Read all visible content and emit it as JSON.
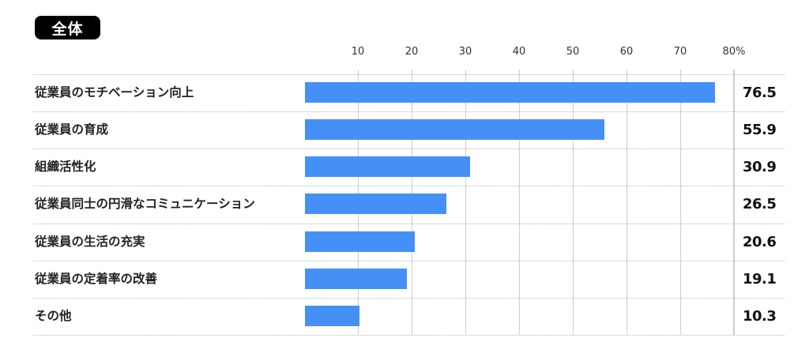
{
  "header": {
    "badge_label": "全体"
  },
  "axis": {
    "ticks": [
      {
        "label": "10",
        "value": 10
      },
      {
        "label": "20",
        "value": 20
      },
      {
        "label": "30",
        "value": 30
      },
      {
        "label": "40",
        "value": 40
      },
      {
        "label": "50",
        "value": 50
      },
      {
        "label": "60",
        "value": 60
      },
      {
        "label": "70",
        "value": 70
      },
      {
        "label": "80%",
        "value": 80
      }
    ]
  },
  "rows": [
    {
      "label": "従業員のモチベーション向上",
      "value": 76.5,
      "value_label": "76.5"
    },
    {
      "label": "従業員の育成",
      "value": 55.9,
      "value_label": "55.9"
    },
    {
      "label": "組織活性化",
      "value": 30.9,
      "value_label": "30.9"
    },
    {
      "label": "従業員同士の円滑なコミュニケーション",
      "value": 26.5,
      "value_label": "26.5"
    },
    {
      "label": "従業員の生活の充実",
      "value": 20.6,
      "value_label": "20.6"
    },
    {
      "label": "従業員の定着率の改善",
      "value": 19.1,
      "value_label": "19.1"
    },
    {
      "label": "その他",
      "value": 10.3,
      "value_label": "10.3"
    }
  ],
  "colors": {
    "bar": "#4590f6",
    "badge_bg": "#000000",
    "badge_text": "#ffffff"
  },
  "chart_data": {
    "type": "bar",
    "orientation": "horizontal",
    "title": "全体",
    "categories": [
      "従業員のモチベーション向上",
      "従業員の育成",
      "組織活性化",
      "従業員同士の円滑なコミュニケーション",
      "従業員の生活の充実",
      "従業員の定着率の改善",
      "その他"
    ],
    "values": [
      76.5,
      55.9,
      30.9,
      26.5,
      20.6,
      19.1,
      10.3
    ],
    "xlabel": "",
    "ylabel": "",
    "unit": "%",
    "xlim": [
      0,
      80
    ],
    "xticks": [
      10,
      20,
      30,
      40,
      50,
      60,
      70,
      80
    ],
    "xtick_labels": [
      "10",
      "20",
      "30",
      "40",
      "50",
      "60",
      "70",
      "80%"
    ],
    "grid": true,
    "data_labels": true,
    "legend": null
  }
}
